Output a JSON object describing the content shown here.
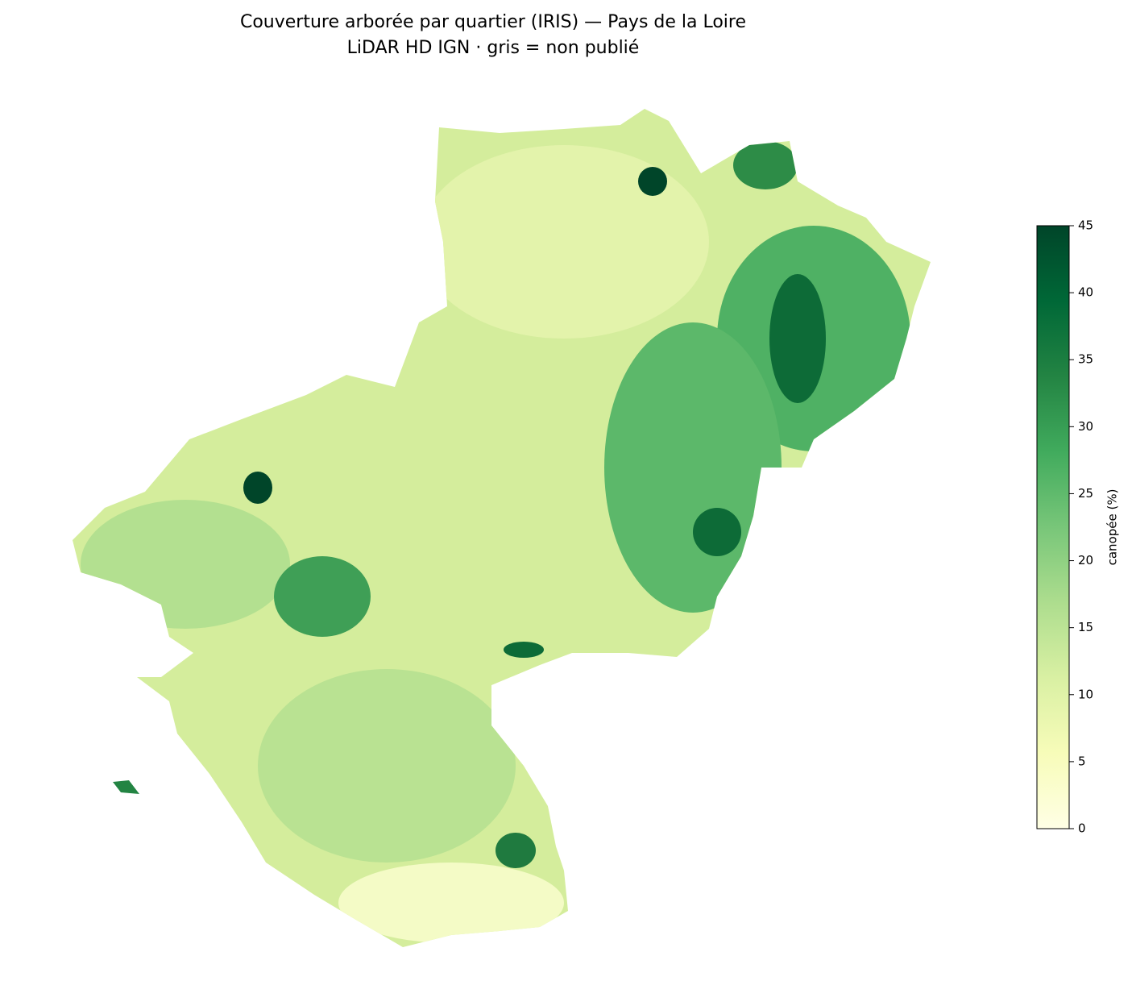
{
  "chart_data": {
    "type": "choropleth",
    "title": "Couverture arborée par quartier (IRIS) — Pays de la Loire",
    "subtitle": "LiDAR HD IGN · gris = non publié",
    "colorbar_label": "canopée (%)",
    "colormap": "YlGn",
    "colorscale": [
      "#ffffe5",
      "#f7fcb9",
      "#d9f0a3",
      "#addd8e",
      "#78c679",
      "#41ab5d",
      "#238443",
      "#006837",
      "#004529"
    ],
    "clim": [
      0,
      45
    ],
    "cticks": [
      0,
      5,
      10,
      15,
      20,
      25,
      30,
      35,
      40,
      45
    ]
  }
}
